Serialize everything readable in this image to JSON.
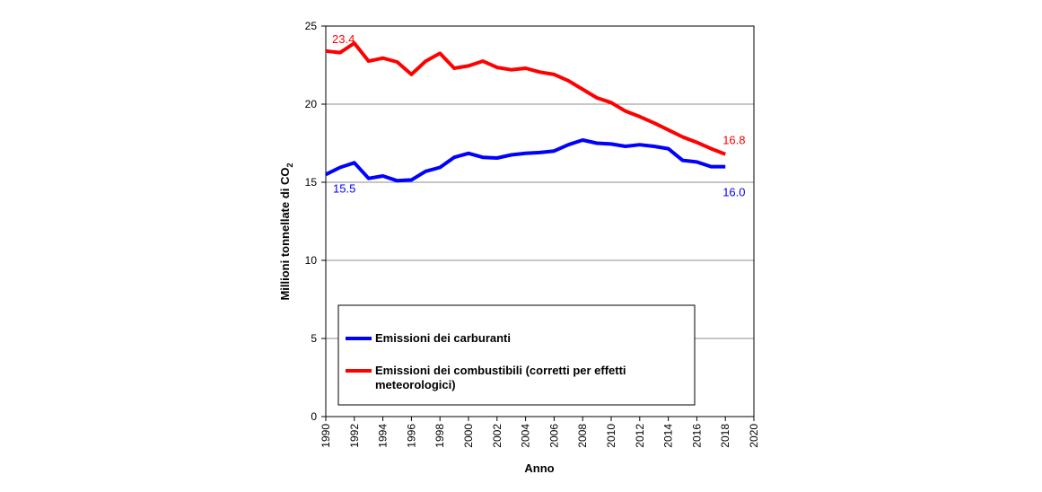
{
  "chart_data": {
    "type": "line",
    "xlabel": "Anno",
    "ylabel": "Millioni tonnellate di CO",
    "ylabel_subscript": "2",
    "xlim": [
      1990,
      2020
    ],
    "ylim": [
      0,
      25
    ],
    "x_ticks": [
      1990,
      1992,
      1994,
      1996,
      1998,
      2000,
      2002,
      2004,
      2006,
      2008,
      2010,
      2012,
      2014,
      2016,
      2018,
      2020
    ],
    "y_ticks": [
      0,
      5,
      10,
      15,
      20,
      25
    ],
    "gridlines_y": [
      5,
      10,
      15,
      20
    ],
    "x": [
      1990,
      1991,
      1992,
      1993,
      1994,
      1995,
      1996,
      1997,
      1998,
      1999,
      2000,
      2001,
      2002,
      2003,
      2004,
      2005,
      2006,
      2007,
      2008,
      2009,
      2010,
      2011,
      2012,
      2013,
      2014,
      2015,
      2016,
      2017,
      2018
    ],
    "series": [
      {
        "name": "Emissioni dei carburanti",
        "color": "#0000ff",
        "values": [
          15.5,
          15.95,
          16.25,
          15.25,
          15.4,
          15.1,
          15.15,
          15.7,
          15.95,
          16.6,
          16.85,
          16.6,
          16.55,
          16.75,
          16.85,
          16.9,
          17.0,
          17.4,
          17.7,
          17.5,
          17.45,
          17.3,
          17.4,
          17.3,
          17.15,
          16.4,
          16.3,
          16.0,
          16.0
        ],
        "start_label": "15.5",
        "end_label": "16.0"
      },
      {
        "name": "Emissioni dei combustibili (corretti per effetti meteorologici)",
        "name_lines": [
          "Emissioni dei combustibili (corretti per effetti",
          "meteorologici)"
        ],
        "color": "#ff0000",
        "values": [
          23.4,
          23.3,
          23.9,
          22.75,
          22.95,
          22.7,
          21.9,
          22.75,
          23.25,
          22.3,
          22.45,
          22.75,
          22.35,
          22.2,
          22.3,
          22.05,
          21.9,
          21.5,
          20.95,
          20.4,
          20.1,
          19.55,
          19.2,
          18.8,
          18.35,
          17.9,
          17.55,
          17.15,
          16.8
        ],
        "start_label": "23.4",
        "end_label": "16.8"
      }
    ],
    "legend_position": "lower-center inside plot"
  }
}
